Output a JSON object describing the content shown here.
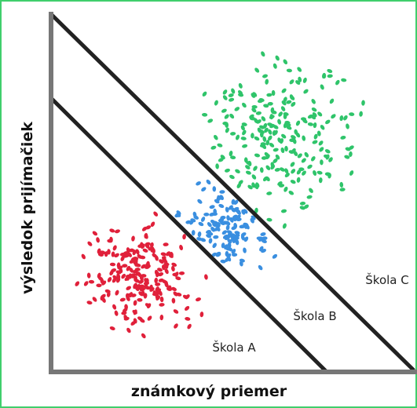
{
  "labels": {
    "school_a": "Škola A",
    "school_b": "Škola B",
    "school_c": "Škola C"
  },
  "x_axis_label": "známkový priemer",
  "y_axis_label": "výsledok prijímačiek"
}
